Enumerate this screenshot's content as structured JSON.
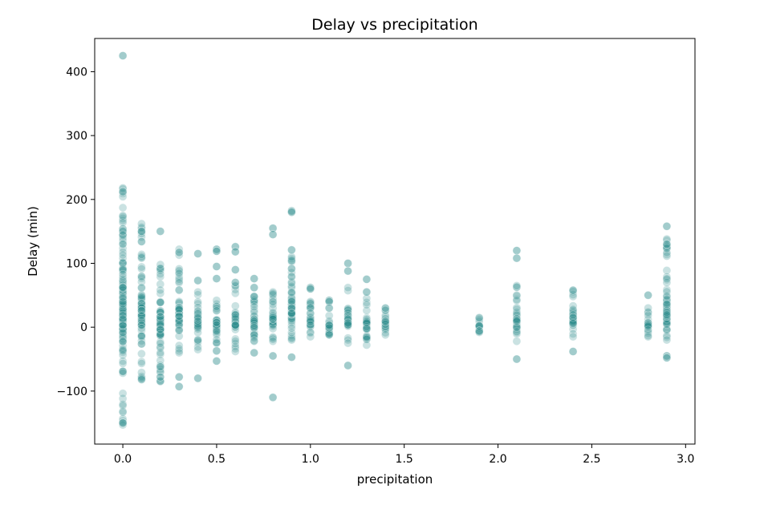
{
  "chart_data": {
    "type": "scatter",
    "title": "Delay vs precipitation",
    "xlabel": "precipitation",
    "ylabel": "Delay (min)",
    "xlim": [
      -0.15,
      3.05
    ],
    "ylim": [
      -183,
      452
    ],
    "xticks": [
      0.0,
      0.5,
      1.0,
      1.5,
      2.0,
      2.5,
      3.0
    ],
    "xtick_labels": [
      "0.0",
      "0.5",
      "1.0",
      "1.5",
      "2.0",
      "2.5",
      "3.0"
    ],
    "yticks": [
      -100,
      0,
      100,
      200,
      300,
      400
    ],
    "ytick_labels": [
      "−100",
      "0",
      "100",
      "200",
      "300",
      "400"
    ],
    "grid": false,
    "marker_color": "#2a8a8a",
    "marker_alpha": 0.25,
    "series": [
      {
        "groups": [
          {
            "x": 0.0,
            "ymin": -153,
            "ymax": 218,
            "n": 140,
            "outliers": [
              425,
              -150,
              212
            ]
          },
          {
            "x": 0.1,
            "ymin": -82,
            "ymax": 162,
            "n": 90,
            "outliers": [
              150,
              134
            ]
          },
          {
            "x": 0.2,
            "ymin": -85,
            "ymax": 98,
            "n": 70,
            "outliers": [
              150,
              -78,
              -62
            ]
          },
          {
            "x": 0.3,
            "ymin": -40,
            "ymax": 122,
            "n": 55,
            "outliers": [
              -93,
              -78,
              117
            ]
          },
          {
            "x": 0.4,
            "ymin": -35,
            "ymax": 55,
            "n": 40,
            "outliers": [
              115,
              73,
              -80
            ]
          },
          {
            "x": 0.5,
            "ymin": -25,
            "ymax": 42,
            "n": 35,
            "outliers": [
              122,
              119,
              95,
              76,
              -37,
              -53
            ]
          },
          {
            "x": 0.6,
            "ymin": -38,
            "ymax": 65,
            "n": 40,
            "outliers": [
              126,
              118,
              90,
              70
            ]
          },
          {
            "x": 0.7,
            "ymin": -22,
            "ymax": 48,
            "n": 35,
            "outliers": [
              76,
              62,
              -40
            ]
          },
          {
            "x": 0.8,
            "ymin": -22,
            "ymax": 55,
            "n": 40,
            "outliers": [
              155,
              145,
              -45,
              -110
            ]
          },
          {
            "x": 0.9,
            "ymin": -20,
            "ymax": 110,
            "n": 55,
            "outliers": [
              182,
              180,
              121,
              -47
            ]
          },
          {
            "x": 1.0,
            "ymin": -15,
            "ymax": 40,
            "n": 30,
            "outliers": [
              62,
              60
            ]
          },
          {
            "x": 1.1,
            "ymin": -12,
            "ymax": 18,
            "n": 20,
            "outliers": [
              42,
              40,
              30
            ]
          },
          {
            "x": 1.2,
            "ymin": -25,
            "ymax": 62,
            "n": 40,
            "outliers": [
              100,
              88,
              -60
            ]
          },
          {
            "x": 1.3,
            "ymin": -28,
            "ymax": 45,
            "n": 30,
            "outliers": [
              75,
              55
            ]
          },
          {
            "x": 1.4,
            "ymin": -12,
            "ymax": 30,
            "n": 20,
            "outliers": []
          },
          {
            "x": 1.9,
            "ymin": -8,
            "ymax": 15,
            "n": 14,
            "outliers": []
          },
          {
            "x": 2.1,
            "ymin": -22,
            "ymax": 65,
            "n": 30,
            "outliers": [
              120,
              108,
              -50
            ]
          },
          {
            "x": 2.4,
            "ymin": -15,
            "ymax": 58,
            "n": 30,
            "outliers": [
              -38
            ]
          },
          {
            "x": 2.8,
            "ymin": -15,
            "ymax": 30,
            "n": 20,
            "outliers": [
              50
            ]
          },
          {
            "x": 2.9,
            "ymin": -20,
            "ymax": 138,
            "n": 55,
            "outliers": [
              158,
              130,
              -45,
              -48
            ]
          }
        ]
      }
    ]
  }
}
